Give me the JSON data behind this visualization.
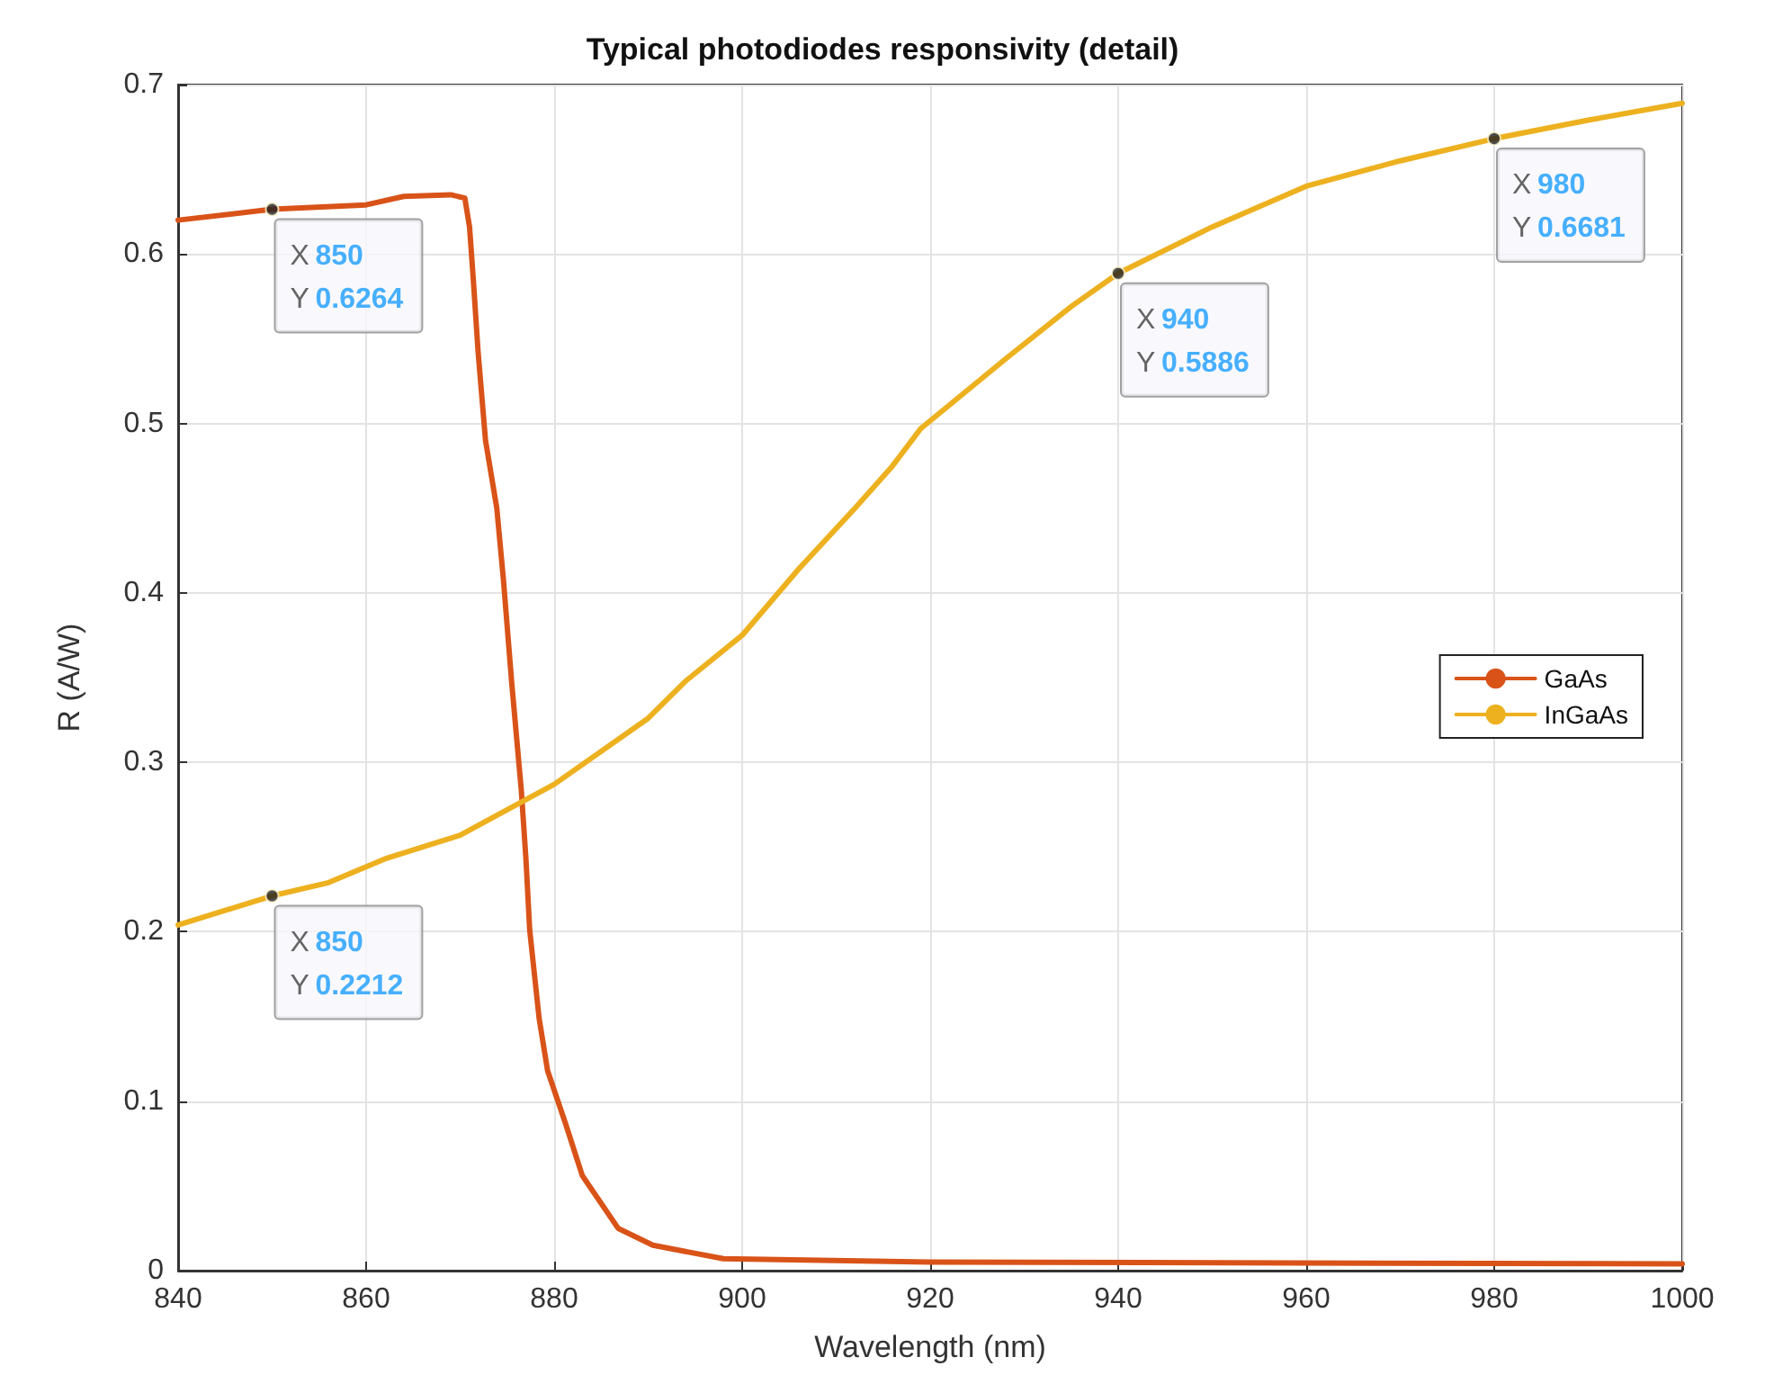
{
  "chart_data": {
    "type": "line",
    "title": "Typical photodiodes responsivity (detail)",
    "xlabel": "Wavelength (nm)",
    "ylabel": "R (A/W)",
    "xlim": [
      840,
      1000
    ],
    "xticks": [
      840,
      860,
      880,
      900,
      920,
      940,
      960,
      980,
      1000
    ],
    "ylim": [
      0,
      0.7
    ],
    "yticks": [
      0,
      0.1,
      0.2,
      0.3,
      0.4,
      0.5,
      0.6,
      0.7
    ],
    "grid": true,
    "legend": "right",
    "marker": "none",
    "line_style": "solid",
    "series": [
      {
        "name": "GaAs",
        "color": "#d95319",
        "x": [
          840,
          850,
          860,
          864,
          869,
          870.5,
          871,
          871.4,
          871.9,
          872.7,
          873.9,
          874.6,
          875.5,
          876.5,
          877,
          877.4,
          878.4,
          879.3,
          881.2,
          883,
          886.8,
          890.5,
          898,
          920,
          1000
        ],
        "values": [
          0.62,
          0.6264,
          0.629,
          0.634,
          0.635,
          0.633,
          0.616,
          0.585,
          0.543,
          0.49,
          0.45,
          0.408,
          0.346,
          0.284,
          0.243,
          0.201,
          0.149,
          0.118,
          0.087,
          0.056,
          0.025,
          0.015,
          0.007,
          0.005,
          0.004
        ]
      },
      {
        "name": "InGaAs",
        "color": "#edb120",
        "x": [
          840,
          850,
          856,
          862,
          870,
          880,
          890,
          894,
          900,
          906,
          912,
          916,
          919,
          928,
          935,
          940,
          950,
          960,
          970,
          980,
          990,
          1000
        ],
        "values": [
          0.204,
          0.2212,
          0.229,
          0.243,
          0.257,
          0.287,
          0.326,
          0.348,
          0.375,
          0.414,
          0.45,
          0.475,
          0.497,
          0.538,
          0.569,
          0.5886,
          0.616,
          0.64,
          0.655,
          0.6681,
          0.679,
          0.689
        ]
      }
    ],
    "annotations": [
      {
        "text": "X 850\nY 0.6264",
        "x": 850,
        "y": 0.6264
      },
      {
        "text": "X 850\nY 0.2212",
        "x": 850,
        "y": 0.2212
      },
      {
        "text": "X 940\nY 0.5886",
        "x": 940,
        "y": 0.5886
      },
      {
        "text": "X 980\nY 0.6681",
        "x": 980,
        "y": 0.6681
      }
    ]
  }
}
